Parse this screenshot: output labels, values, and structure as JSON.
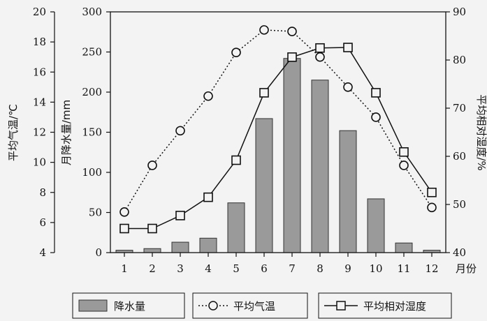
{
  "chart_data": {
    "type": "bar+line",
    "x_axis": {
      "categories": [
        "1",
        "2",
        "3",
        "4",
        "5",
        "6",
        "7",
        "8",
        "9",
        "10",
        "11",
        "12"
      ],
      "unit_label": "月份"
    },
    "axes": {
      "left_temp": {
        "label": "平均气温/℃",
        "range": [
          4,
          20
        ],
        "ticks": [
          "4",
          "6",
          "8",
          "10",
          "12",
          "14",
          "16",
          "18",
          "20"
        ]
      },
      "left_precip": {
        "label": "月降水量/mm",
        "range": [
          0,
          300
        ],
        "ticks": [
          "0",
          "50",
          "100",
          "150",
          "200",
          "250",
          "300"
        ]
      },
      "right_humidity": {
        "label": "平均相对湿度/%",
        "range": [
          40,
          90
        ],
        "ticks": [
          "40",
          "50",
          "60",
          "70",
          "80",
          "90"
        ]
      }
    },
    "series": [
      {
        "name": "降水量",
        "type": "bar",
        "axis": "left_precip",
        "color": "#9a9a9a",
        "values": [
          3,
          5,
          13,
          18,
          62,
          167,
          242,
          215,
          152,
          67,
          12,
          3
        ]
      },
      {
        "name": "平均气温",
        "type": "line",
        "style": "dotted",
        "marker": "circle",
        "axis": "left_temp",
        "values": [
          6.7,
          9.8,
          12.1,
          14.4,
          17.3,
          18.8,
          18.7,
          17.0,
          15.0,
          13.0,
          9.8,
          7.0
        ]
      },
      {
        "name": "平均相对湿度",
        "type": "line",
        "style": "solid",
        "marker": "square",
        "axis": "right_humidity",
        "values": [
          45,
          45,
          47.7,
          51.5,
          59.2,
          73.2,
          80.6,
          82.5,
          82.6,
          73.2,
          60.9,
          52.5
        ]
      }
    ],
    "legend": {
      "position": "bottom",
      "items": [
        "降水量",
        "平均气温",
        "平均相对湿度"
      ]
    },
    "grid": false
  }
}
